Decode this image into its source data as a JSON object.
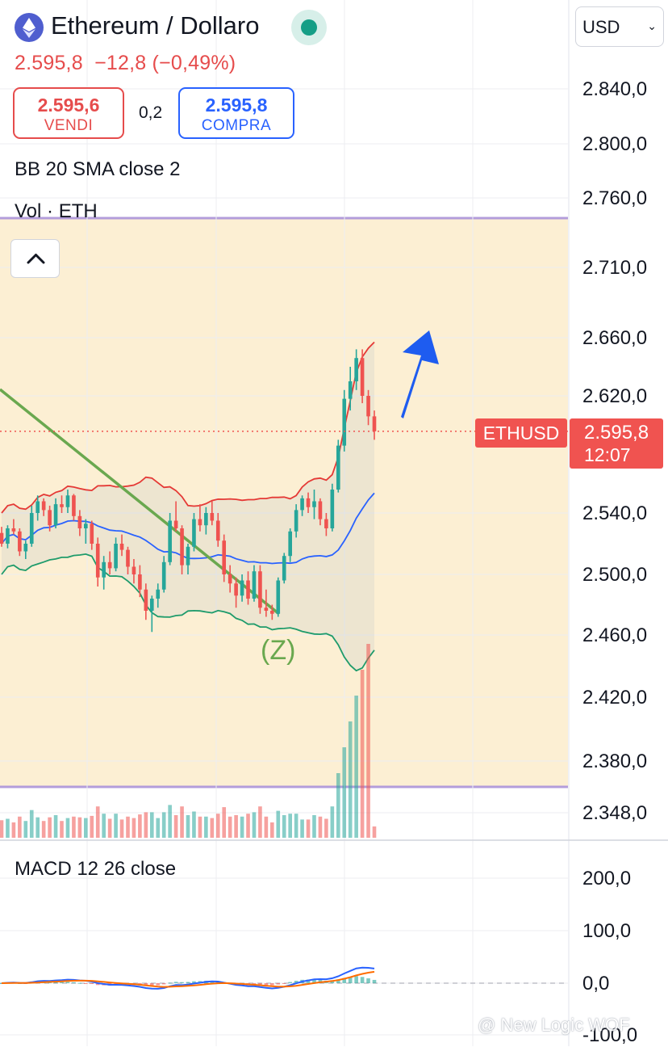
{
  "header": {
    "title": "Ethereum / Dollaro",
    "last_price": "2.595,8",
    "change": "−12,8",
    "change_pct": "(−0,49%)",
    "currency": "USD"
  },
  "trade": {
    "sell_price": "2.595,6",
    "sell_label": "VENDI",
    "spread": "0,2",
    "buy_price": "2.595,8",
    "buy_label": "COMPRA"
  },
  "indicators": {
    "bb": "BB 20 SMA close 2",
    "vol": "Vol · ETH",
    "macd": "MACD 12 26 close"
  },
  "price_axis": [
    "2.840,0",
    "2.800,0",
    "2.760,0",
    "2.710,0",
    "2.660,0",
    "2.620,0",
    "2.540,0",
    "2.500,0",
    "2.460,0",
    "2.420,0",
    "2.380,0",
    "2.348,0"
  ],
  "macd_axis": [
    "200,0",
    "100,0",
    "0,0",
    "-100,0"
  ],
  "current": {
    "symbol": "ETHUSD",
    "price": "2.595,8",
    "countdown": "12:07"
  },
  "annotations": {
    "wave_label": "(Z)"
  },
  "watermark": "@ New Logic WOF",
  "colors": {
    "up": "#26a69a",
    "down": "#ef5350",
    "bb_upper": "#e53935",
    "bb_basis": "#2962ff",
    "bb_lower": "#1e9b6b",
    "trendline": "#6aa84f",
    "arrow": "#1e5cf0",
    "highlight_zone": "#fcefd3",
    "macd_line": "#2962ff",
    "signal_line": "#ff6d00"
  },
  "icons": {
    "logo": "ethereum-icon",
    "status": "market-open-dot-icon",
    "collapse": "chevron-up-icon",
    "select": "chevron-down-icon"
  },
  "chart_data": {
    "type": "candlestick",
    "price_range": [
      2348,
      2860
    ],
    "current_price": 2595.8,
    "candles": [
      [
        2527,
        2531,
        2518,
        2520
      ],
      [
        2520,
        2532,
        2517,
        2530
      ],
      [
        2530,
        2536,
        2526,
        2528
      ],
      [
        2528,
        2530,
        2512,
        2515
      ],
      [
        2515,
        2522,
        2510,
        2520
      ],
      [
        2520,
        2545,
        2518,
        2540
      ],
      [
        2540,
        2552,
        2535,
        2548
      ],
      [
        2548,
        2550,
        2538,
        2542
      ],
      [
        2542,
        2545,
        2528,
        2532
      ],
      [
        2532,
        2550,
        2530,
        2546
      ],
      [
        2546,
        2552,
        2540,
        2544
      ],
      [
        2544,
        2556,
        2540,
        2552
      ],
      [
        2552,
        2553,
        2535,
        2538
      ],
      [
        2538,
        2542,
        2525,
        2530
      ],
      [
        2530,
        2536,
        2520,
        2533
      ],
      [
        2533,
        2535,
        2516,
        2520
      ],
      [
        2520,
        2524,
        2492,
        2498
      ],
      [
        2498,
        2512,
        2490,
        2508
      ],
      [
        2508,
        2515,
        2500,
        2504
      ],
      [
        2504,
        2524,
        2502,
        2520
      ],
      [
        2520,
        2526,
        2512,
        2516
      ],
      [
        2516,
        2518,
        2500,
        2505
      ],
      [
        2505,
        2510,
        2494,
        2500
      ],
      [
        2500,
        2506,
        2485,
        2490
      ],
      [
        2490,
        2494,
        2470,
        2476
      ],
      [
        2476,
        2486,
        2462,
        2484
      ],
      [
        2484,
        2494,
        2478,
        2490
      ],
      [
        2490,
        2512,
        2488,
        2508
      ],
      [
        2508,
        2540,
        2506,
        2535
      ],
      [
        2535,
        2548,
        2528,
        2530
      ],
      [
        2530,
        2532,
        2500,
        2506
      ],
      [
        2506,
        2520,
        2500,
        2518
      ],
      [
        2518,
        2540,
        2515,
        2536
      ],
      [
        2536,
        2546,
        2528,
        2532
      ],
      [
        2532,
        2544,
        2526,
        2540
      ],
      [
        2540,
        2548,
        2532,
        2535
      ],
      [
        2535,
        2540,
        2518,
        2522
      ],
      [
        2522,
        2526,
        2495,
        2500
      ],
      [
        2500,
        2506,
        2488,
        2494
      ],
      [
        2494,
        2498,
        2478,
        2486
      ],
      [
        2486,
        2500,
        2482,
        2496
      ],
      [
        2496,
        2502,
        2480,
        2484
      ],
      [
        2484,
        2506,
        2482,
        2502
      ],
      [
        2502,
        2506,
        2474,
        2478
      ],
      [
        2478,
        2490,
        2472,
        2476
      ],
      [
        2476,
        2480,
        2470,
        2474
      ],
      [
        2474,
        2498,
        2472,
        2496
      ],
      [
        2496,
        2514,
        2494,
        2512
      ],
      [
        2512,
        2530,
        2508,
        2528
      ],
      [
        2528,
        2546,
        2524,
        2542
      ],
      [
        2542,
        2552,
        2538,
        2550
      ],
      [
        2550,
        2554,
        2540,
        2544
      ],
      [
        2544,
        2556,
        2536,
        2548
      ],
      [
        2548,
        2550,
        2532,
        2536
      ],
      [
        2536,
        2540,
        2525,
        2530
      ],
      [
        2530,
        2560,
        2528,
        2556
      ],
      [
        2556,
        2590,
        2554,
        2586
      ],
      [
        2586,
        2624,
        2582,
        2618
      ],
      [
        2618,
        2640,
        2610,
        2630
      ],
      [
        2630,
        2652,
        2624,
        2646
      ],
      [
        2646,
        2652,
        2615,
        2620
      ],
      [
        2620,
        2624,
        2600,
        2606
      ],
      [
        2606,
        2610,
        2590,
        2595.8
      ]
    ]
  }
}
